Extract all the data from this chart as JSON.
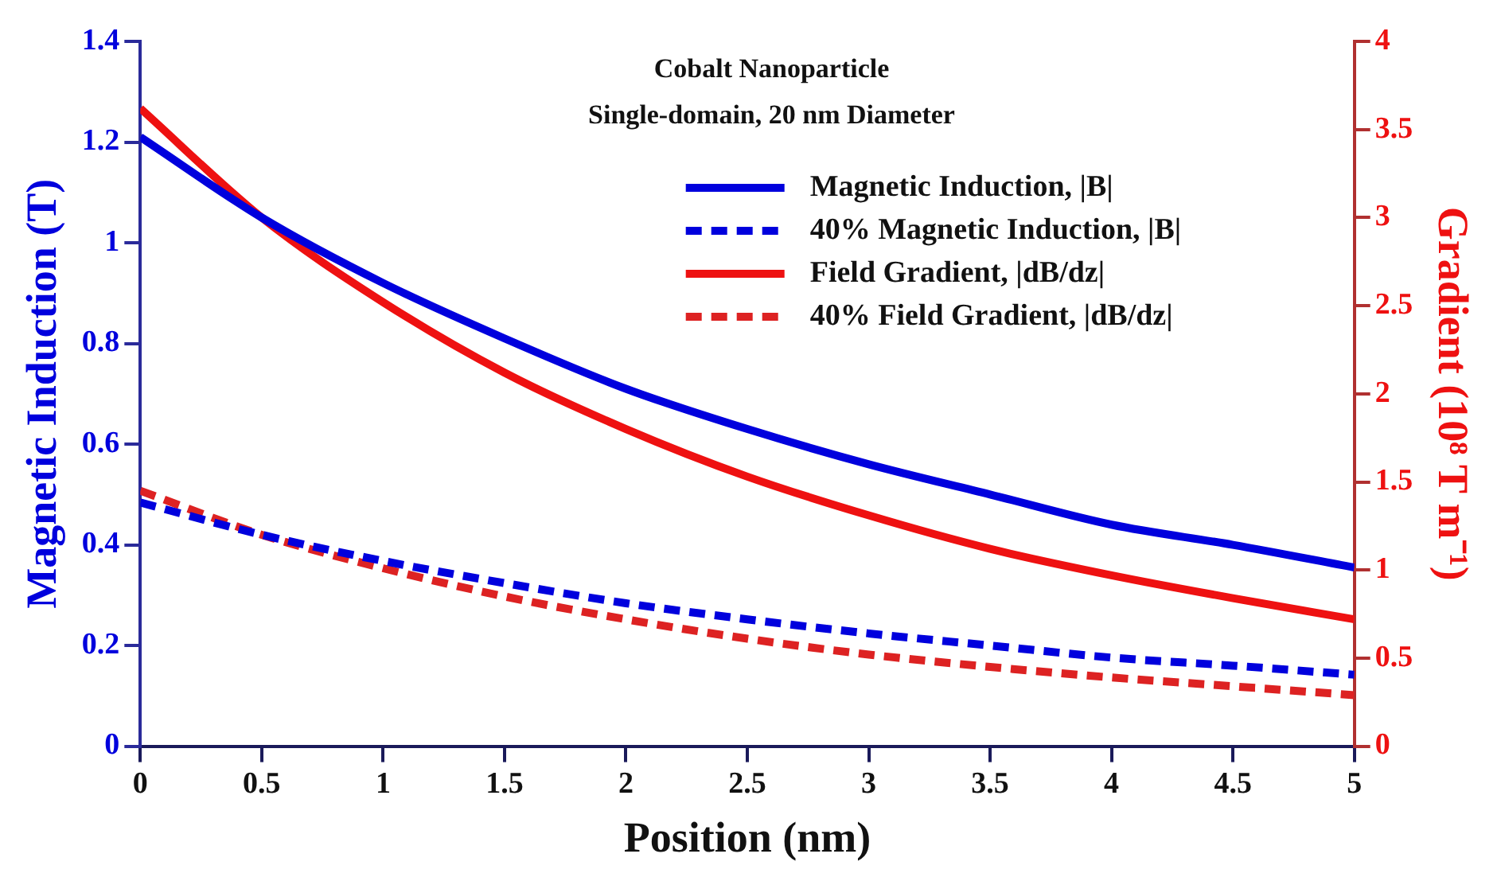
{
  "chart_data": {
    "type": "line",
    "title": "Cobalt Nanoparticle",
    "subtitle": "Single-domain, 20 nm Diameter",
    "xlabel": "Position (nm)",
    "ylabel": "Magnetic Induction (T)",
    "y2label": "Gradient (10⁸ T m⁻¹)",
    "x": [
      0,
      0.5,
      1,
      1.5,
      2,
      2.5,
      3,
      3.5,
      4,
      4.5,
      5
    ],
    "series": [
      {
        "name": "Magnetic Induction, |B|",
        "color": "#0000dd",
        "line_style": "solid",
        "values": [
          1.21,
          1.05,
          0.92,
          0.81,
          0.71,
          0.63,
          0.56,
          0.5,
          0.44,
          0.4,
          0.355
        ]
      },
      {
        "name": "40% Magnetic Induction, |B|",
        "color": "#0000dd",
        "line_style": "dashed",
        "values": [
          0.484,
          0.42,
          0.368,
          0.324,
          0.284,
          0.252,
          0.224,
          0.2,
          0.176,
          0.16,
          0.142
        ]
      },
      {
        "name": "Field Gradient, |dB/dz|",
        "color": "#ee1111",
        "line_style": "solid",
        "axis": "y2",
        "values": [
          3.62,
          3.0,
          2.52,
          2.12,
          1.8,
          1.53,
          1.31,
          1.12,
          0.97,
          0.84,
          0.72
        ]
      },
      {
        "name": "40% Field Gradient, |dB/dz|",
        "color": "#dd2222",
        "line_style": "dashed",
        "axis": "y2",
        "values": [
          1.45,
          1.2,
          1.01,
          0.85,
          0.72,
          0.61,
          0.52,
          0.45,
          0.39,
          0.34,
          0.29
        ]
      }
    ],
    "xlim": [
      0,
      5
    ],
    "xticks": [
      0,
      0.5,
      1,
      1.5,
      2,
      2.5,
      3,
      3.5,
      4,
      4.5,
      5
    ],
    "ylim": [
      0,
      1.4
    ],
    "yticks": [
      0,
      0.2,
      0.4,
      0.6,
      0.8,
      1,
      1.2,
      1.4
    ],
    "y2lim": [
      0,
      4
    ],
    "y2ticks": [
      0,
      0.5,
      1,
      1.5,
      2,
      2.5,
      3,
      3.5,
      4
    ],
    "grid": false,
    "legend": "top right",
    "marker": "none"
  }
}
